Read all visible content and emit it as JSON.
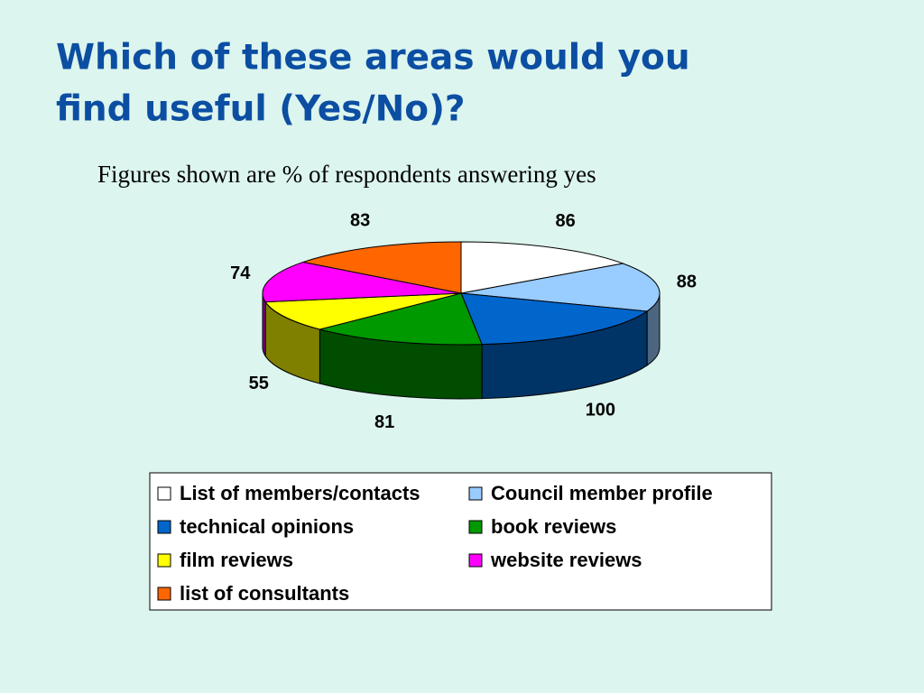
{
  "chart_data": {
    "type": "pie3d",
    "title_lines": [
      "Which of these areas would you",
      "find useful (Yes/No)?"
    ],
    "subtitle": "Figures shown are % of respondents answering yes",
    "categories": [
      "List of members/contacts",
      "Council member profile",
      "technical opinions",
      "book reviews",
      "film reviews",
      "website reviews",
      "list of consultants"
    ],
    "values": [
      86,
      88,
      100,
      81,
      55,
      74,
      83
    ],
    "colors": [
      "#ffffff",
      "#99ccff",
      "#0066cc",
      "#009900",
      "#ffff00",
      "#ff00ff",
      "#ff6600"
    ],
    "legend": "bottom"
  }
}
